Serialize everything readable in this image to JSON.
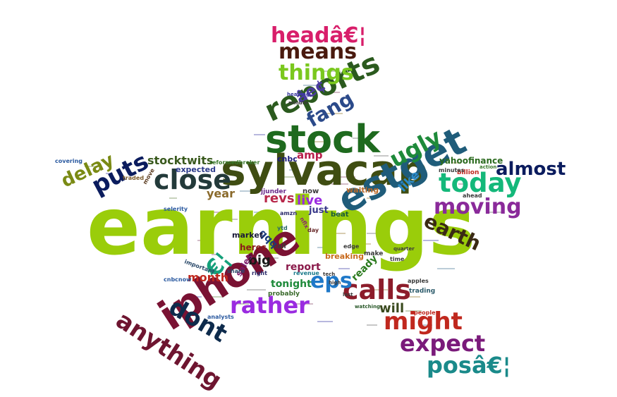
{
  "words": [
    {
      "text": "earnings",
      "color": "#9ACD0A"
    },
    {
      "text": "sylvacap",
      "color": "#3F4D12"
    },
    {
      "text": "iphone",
      "color": "#7A1233"
    },
    {
      "text": "stock",
      "color": "#1E6A1E"
    },
    {
      "text": "estget",
      "color": "#1F5C7A"
    },
    {
      "text": "reports",
      "color": "#2B5A1E"
    },
    {
      "text": "today",
      "color": "#14B87A"
    },
    {
      "text": "close",
      "color": "#233A3A"
    },
    {
      "text": "puts",
      "color": "#0B1C5E"
    },
    {
      "text": "calls",
      "color": "#8C1C2A"
    },
    {
      "text": "might",
      "color": "#C0281E"
    },
    {
      "text": "moving",
      "color": "#8A2A9A"
    },
    {
      "text": "anything",
      "color": "#6E1530"
    },
    {
      "text": "rather",
      "color": "#9A2BE0"
    },
    {
      "text": "eps",
      "color": "#1E78C8"
    },
    {
      "text": "dont",
      "color": "#0E2B4C"
    },
    {
      "text": "€¦",
      "color": "#14A07A"
    },
    {
      "text": "expect",
      "color": "#7A1A7A"
    },
    {
      "text": "posâ€¦",
      "color": "#1A8A8A"
    },
    {
      "text": "almost",
      "color": "#0B1C5E"
    },
    {
      "text": "earth",
      "color": "#3A2A14"
    },
    {
      "text": "delay",
      "color": "#7A8A14"
    },
    {
      "text": "ugly",
      "color": "#1E8A3A"
    },
    {
      "text": "things",
      "color": "#7AC81E"
    },
    {
      "text": "means",
      "color": "#4A1A0E"
    },
    {
      "text": "headâ€¦",
      "color": "#D81E6A"
    },
    {
      "text": "fang",
      "color": "#2B4A8A"
    },
    {
      "text": "stocktwits",
      "color": "#3A5A1E"
    },
    {
      "text": "amp",
      "color": "#B81E4A"
    },
    {
      "text": "revs",
      "color": "#B8284A"
    },
    {
      "text": "live",
      "color": "#9A2BE0"
    },
    {
      "text": "like",
      "color": "#2B8AC8"
    },
    {
      "text": "year",
      "color": "#8A6A2B"
    },
    {
      "text": "big",
      "color": "#1A1A1A"
    },
    {
      "text": "month",
      "color": "#C0281E"
    },
    {
      "text": "tonight",
      "color": "#1E8A3A"
    },
    {
      "text": "report",
      "color": "#8A1A4A"
    },
    {
      "text": "will",
      "color": "#3A4A1E"
    },
    {
      "text": "yahoofinance",
      "color": "#2B6A1E"
    },
    {
      "text": "âe¢",
      "color": "#4A3AA0"
    },
    {
      "text": "expected",
      "color": "#2B3A8A"
    },
    {
      "text": "breaking",
      "color": "#C86A1E"
    },
    {
      "text": "ready",
      "color": "#2B7A1E"
    },
    {
      "text": "just",
      "color": "#3A3A8A"
    },
    {
      "text": "qqq",
      "color": "#1A3A7A"
    },
    {
      "text": "heres",
      "color": "#8A1A1A"
    },
    {
      "text": "sales",
      "color": "#7A1A6A"
    },
    {
      "text": "market",
      "color": "#1A1A3A"
    },
    {
      "text": "now",
      "color": "#3A3A3A"
    },
    {
      "text": "waiting",
      "color": "#B86A2B"
    },
    {
      "text": "cnbc",
      "color": "#1A1A7A"
    },
    {
      "text": "beat",
      "color": "#1A5A3A"
    },
    {
      "text": "covering",
      "color": "#2B5AA0"
    },
    {
      "text": "selerity",
      "color": "#2B5AA0"
    },
    {
      "text": "analysts",
      "color": "#2B5AA0"
    },
    {
      "text": "cnbcnow",
      "color": "#2B5AA0"
    },
    {
      "text": "probably",
      "color": "#3A6A2B"
    },
    {
      "text": "trading",
      "color": "#2B5A6A"
    },
    {
      "text": "apples",
      "color": "#3A3A3A"
    },
    {
      "text": "billion",
      "color": "#C0281E"
    },
    {
      "text": "minutes",
      "color": "#3A3A3A"
    },
    {
      "text": "ahead",
      "color": "#3A3A3A"
    },
    {
      "text": "reformedbroker",
      "color": "#3A7A2B"
    },
    {
      "text": "amzn",
      "color": "#2B2B6A"
    },
    {
      "text": "jjunder",
      "color": "#6A2B8A"
    },
    {
      "text": "nflx",
      "color": "#8A2B6A"
    },
    {
      "text": "traded",
      "color": "#7A5A2B"
    },
    {
      "text": "move",
      "color": "#5A3A1E"
    },
    {
      "text": "important",
      "color": "#2B4A6A"
    },
    {
      "text": "make",
      "color": "#3A3A3A"
    },
    {
      "text": "call",
      "color": "#3A3A3A"
    },
    {
      "text": "time",
      "color": "#3A3A3A"
    },
    {
      "text": "share",
      "color": "#2B4A6A"
    },
    {
      "text": "day",
      "color": "#6A2B2B"
    },
    {
      "text": "revenue",
      "color": "#1A7A8A"
    },
    {
      "text": "right",
      "color": "#2B2B6A"
    },
    {
      "text": "people",
      "color": "#C0281E"
    },
    {
      "text": "watching",
      "color": "#2B5A2B"
    },
    {
      "text": "heading",
      "color": "#3A3AA0"
    },
    {
      "text": "minute",
      "color": "#3A3A3A"
    },
    {
      "text": "ytd",
      "color": "#2B6A6A"
    },
    {
      "text": "edge",
      "color": "#3A3A3A"
    },
    {
      "text": "quarter",
      "color": "#3A3A3A"
    },
    {
      "text": "action",
      "color": "#3A7A2B"
    },
    {
      "text": "tech",
      "color": "#3A3A3A"
    },
    {
      "text": "high",
      "color": "#3A3A3A"
    },
    {
      "text": "last",
      "color": "#3A3A3A"
    }
  ]
}
